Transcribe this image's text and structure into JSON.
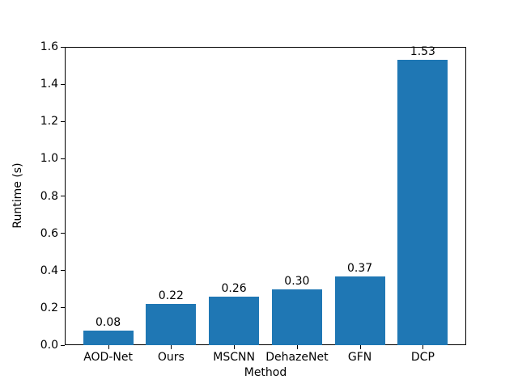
{
  "chart_data": {
    "type": "bar",
    "categories": [
      "AOD-Net",
      "Ours",
      "MSCNN",
      "DehazeNet",
      "GFN",
      "DCP"
    ],
    "values": [
      0.08,
      0.22,
      0.26,
      0.3,
      0.37,
      1.53
    ],
    "value_labels": [
      "0.08",
      "0.22",
      "0.26",
      "0.30",
      "0.37",
      "1.53"
    ],
    "title": "",
    "xlabel": "Method",
    "ylabel": "Runtime (s)",
    "ylim": [
      0.0,
      1.6
    ],
    "yticks": [
      0.0,
      0.2,
      0.4,
      0.6,
      0.8,
      1.0,
      1.2,
      1.4,
      1.6
    ],
    "ytick_labels": [
      "0.0",
      "0.2",
      "0.4",
      "0.6",
      "0.8",
      "1.0",
      "1.2",
      "1.4",
      "1.6"
    ],
    "bar_color": "#1f77b4",
    "grid": false,
    "legend": "none",
    "background_color": "#ffffff",
    "text_color": "#000000"
  }
}
